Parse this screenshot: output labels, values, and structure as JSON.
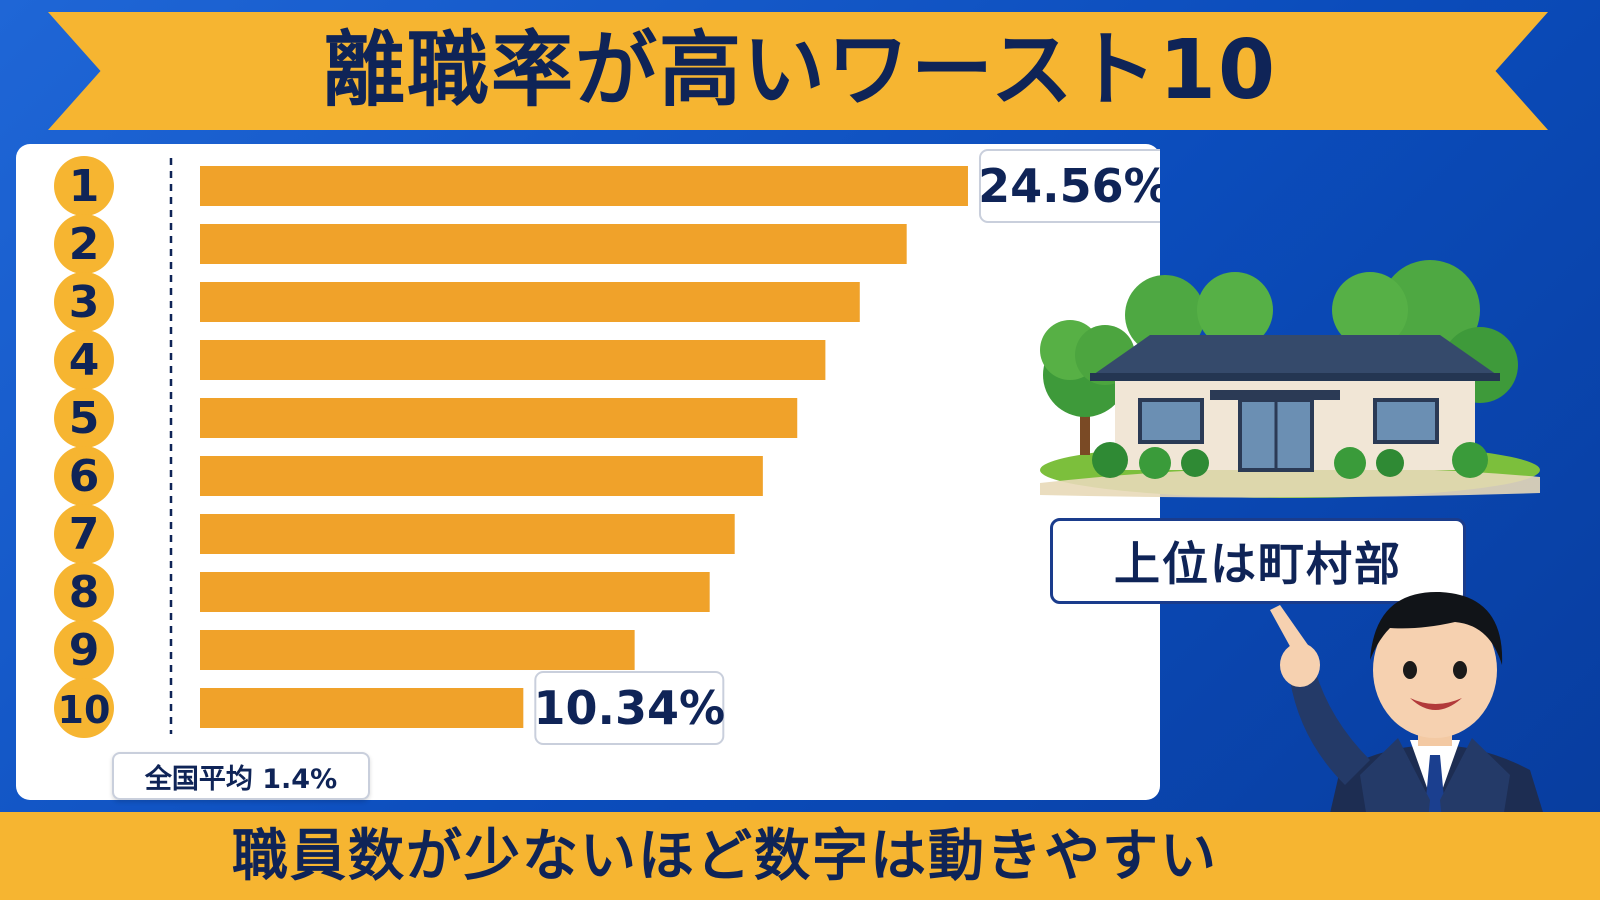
{
  "title": "離職率が高いワースト10",
  "subtitle": "職員数が少ないほど数字は動きやすい",
  "callout": "上位は町村部",
  "average_label": "全国平均 1.4%",
  "chart_data": {
    "type": "bar",
    "orientation": "horizontal",
    "categories": [
      "1",
      "2",
      "3",
      "4",
      "5",
      "6",
      "7",
      "8",
      "9",
      "10"
    ],
    "values": [
      24.56,
      22.6,
      21.1,
      20.0,
      19.1,
      18.0,
      17.1,
      16.3,
      13.9,
      10.34
    ],
    "data_labels": [
      {
        "index": 0,
        "text": "24.56%"
      },
      {
        "index": 9,
        "text": "10.34%"
      }
    ],
    "reference_line": {
      "value": 1.4,
      "label": "全国平均 1.4%"
    },
    "xlim": [
      0,
      26
    ],
    "grid": false,
    "colors": {
      "bar": "#f0a22a",
      "rank_circle": "#f6b531",
      "rank_text": "#0f2457",
      "reference_line": "#0f2457"
    }
  },
  "colors": {
    "background": "#0b4cbb",
    "ribbon": "#f6b531",
    "text_dark": "#0f2457"
  },
  "illustration": {
    "building": "rural-town-hall-icon",
    "presenter": "presenter-pointing-icon"
  }
}
